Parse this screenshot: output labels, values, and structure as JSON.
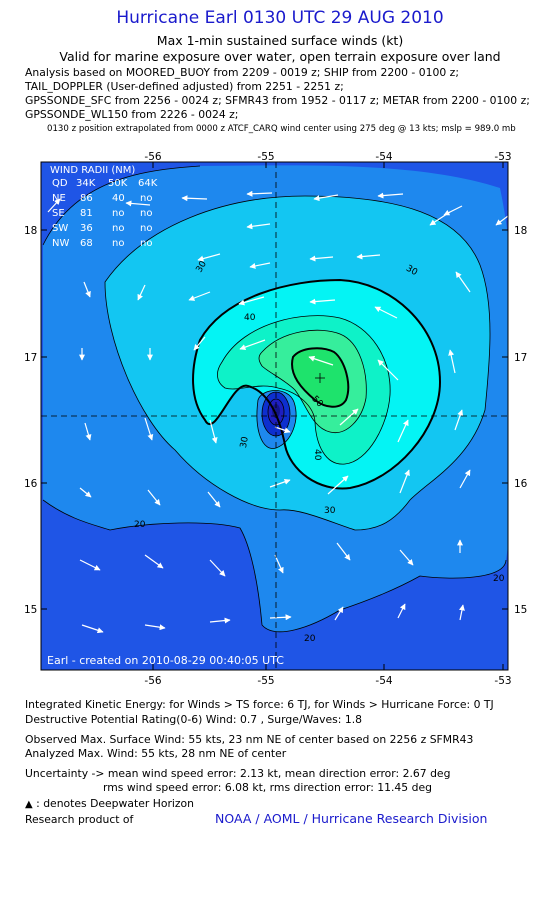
{
  "header": {
    "title": "Hurricane Earl 0130 UTC 29 AUG 2010",
    "subtitle1": "Max 1-min sustained surface winds (kt)",
    "subtitle2": "Valid for marine exposure over water, open terrain exposure over land",
    "analysis": [
      "Analysis based on MOORED_BUOY from 2209 - 0019 z; SHIP from 2200 - 0100 z;",
      "TAIL_DOPPLER (User-defined adjusted) from 2251 - 2251 z;",
      "GPSSONDE_SFC from 2256 - 0024 z; SFMR43 from 1952 - 0117 z; METAR from 2200 - 0100 z;",
      "GPSSONDE_WL150 from 2226 - 0024 z;"
    ],
    "position_note": "0130 z position extrapolated from 0000 z ATCF_CARQ wind center using 275 deg @ 13 kts; mslp = 989.0 mb"
  },
  "wind_radii": {
    "header": [
      "WIND RADII (NM)",
      "QD",
      "34K",
      "50K",
      "64K"
    ],
    "rows": [
      [
        "NE",
        "86",
        "40",
        "no",
        "no"
      ],
      [
        "SE",
        "81",
        "no",
        "no",
        "no"
      ],
      [
        "SW",
        "36",
        "no",
        "no",
        "no"
      ],
      [
        "NW",
        "68",
        "no",
        "no",
        "no"
      ]
    ]
  },
  "credit": "Earl - created on 2010-08-29 00:40:05 UTC",
  "chart_data": {
    "type": "heatmap",
    "x_ticks": [
      -56,
      -55,
      -54,
      -53
    ],
    "x_tick_labels": [
      "-56",
      "-55",
      "-54",
      "-53"
    ],
    "y_ticks": [
      15,
      16,
      17,
      18
    ],
    "y_tick_labels": [
      "15",
      "16",
      "17",
      "18"
    ],
    "xlim": [
      -56.9,
      -52.95
    ],
    "ylim": [
      14.6,
      18.55
    ],
    "contour_levels": [
      20,
      30,
      40,
      50
    ],
    "contour_labels": [
      "20",
      "30",
      "40",
      "50"
    ],
    "bold_contours": [
      34,
      50
    ],
    "fill_colors": [
      "#1f55e6",
      "#1e88ee",
      "#13c6f2",
      "#04f4f4",
      "#0ef2c8",
      "#36ee9c",
      "#1ee36c",
      "#0d2fcf",
      "#1e1ec0"
    ],
    "center": {
      "lon": -54.95,
      "lat": 16.55
    },
    "max_wind_location": {
      "lon": -54.45,
      "lat": 16.83
    },
    "grid": "dashed crosshair through center"
  },
  "info": {
    "ike": "Integrated Kinetic Energy:  for Winds > TS force: 6 TJ,  for Winds > Hurricane Force: 0 TJ",
    "dpr": "Destructive Potential Rating(0-6)   Wind: 0.7 , Surge/Waves: 1.8",
    "observed": "Observed Max. Surface Wind: 55 kts, 23 nm NE of center based on 2256 z SFMR43",
    "analyzed": "Analyzed Max. Wind: 55 kts, 28 nm NE of center",
    "uncertainty1": "Uncertainty -> mean wind speed error: 2.13 kt,   mean direction error: 2.67 deg",
    "uncertainty2": "rms wind speed error: 6.08 kt,    rms direction error: 11.45 deg",
    "deepwater_symbol": "▲",
    "deepwater": " : denotes Deepwater Horizon",
    "research": "Research product of",
    "noaa": "NOAA / AOML / Hurricane Research Division"
  }
}
